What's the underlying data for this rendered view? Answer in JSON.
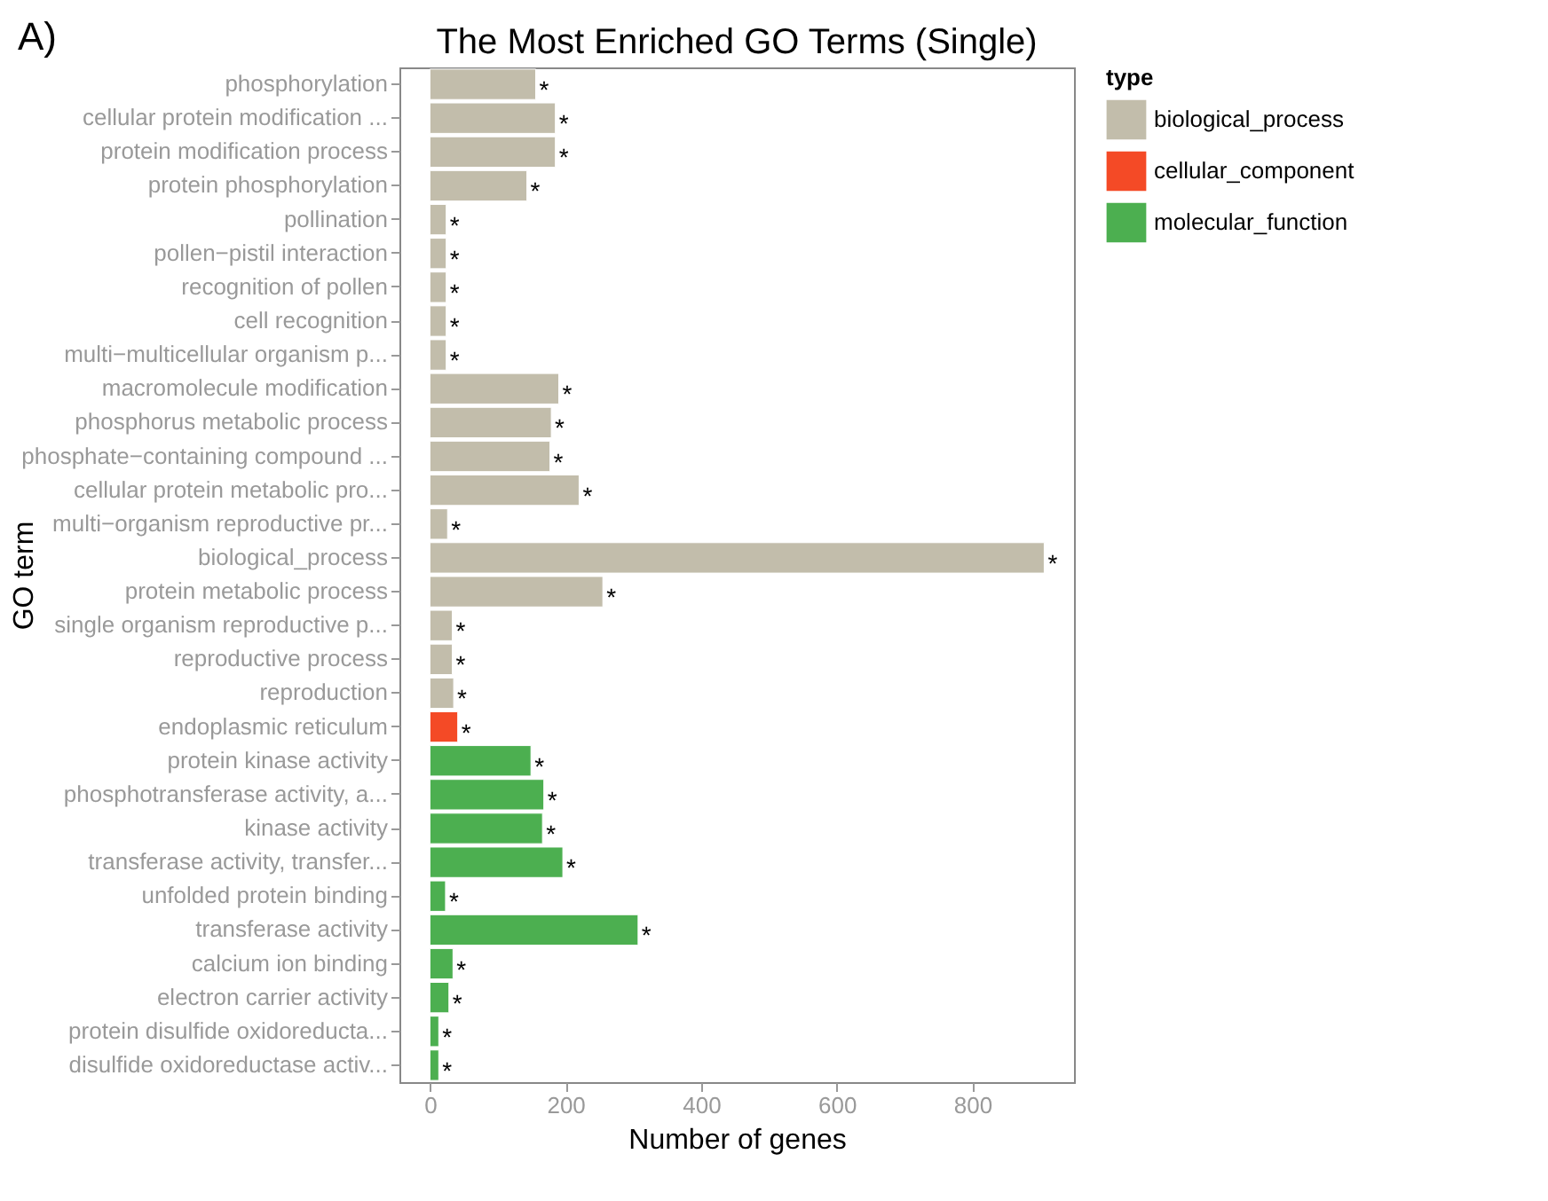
{
  "chart_data": {
    "type": "bar",
    "orientation": "horizontal",
    "title": "The Most Enriched GO Terms (Single)",
    "xlabel": "Number of genes",
    "ylabel": "GO term",
    "legend_title": "type",
    "legend": "right",
    "grid": false,
    "categories": [
      "phosphorylation",
      "cellular protein modification ...",
      "protein modification process",
      "protein phosphorylation",
      "pollination",
      "pollen−pistil interaction",
      "recognition of pollen",
      "cell recognition",
      "multi−multicellular organism p...",
      "macromolecule modification",
      "phosphorus metabolic process",
      "phosphate−containing compound ...",
      "cellular protein metabolic pro...",
      "multi−organism reproductive pr...",
      "biological_process",
      "protein metabolic process",
      "single organism reproductive p...",
      "reproductive process",
      "reproduction",
      "endoplasmic reticulum",
      "protein kinase activity",
      "phosphotransferase activity, a...",
      "kinase activity",
      "transferase activity, transfer...",
      "unfolded protein binding",
      "transferase activity",
      "calcium ion binding",
      "electron carrier activity",
      "protein disulfide oxidoreducta...",
      "disulfide oxidoreductase activ..."
    ],
    "series": [
      {
        "name": "biological_process",
        "color": "#c2bdab",
        "values": [
          156,
          185,
          185,
          143,
          24,
          24,
          24,
          24,
          24,
          190,
          179,
          177,
          220,
          26,
          906,
          255,
          33,
          33,
          35,
          null,
          null,
          null,
          null,
          null,
          null,
          null,
          null,
          null,
          null,
          null
        ]
      },
      {
        "name": "cellular_component",
        "color": "#f44a26",
        "values": [
          null,
          null,
          null,
          null,
          null,
          null,
          null,
          null,
          null,
          null,
          null,
          null,
          null,
          null,
          null,
          null,
          null,
          null,
          null,
          41,
          null,
          null,
          null,
          null,
          null,
          null,
          null,
          null,
          null,
          null
        ]
      },
      {
        "name": "molecular_function",
        "color": "#4caf50",
        "values": [
          null,
          null,
          null,
          null,
          null,
          null,
          null,
          null,
          null,
          null,
          null,
          null,
          null,
          null,
          null,
          null,
          null,
          null,
          null,
          null,
          149,
          168,
          166,
          196,
          23,
          307,
          34,
          28,
          13,
          13
        ]
      }
    ],
    "xlim": [
      -45,
      950
    ],
    "xticks": [
      0,
      200,
      400,
      600,
      800
    ],
    "annotations": [
      "A)",
      {
        "text": "*",
        "x": 156,
        "y": "phosphorylation"
      },
      {
        "text": "*",
        "x": 185,
        "y": "cellular protein modification ..."
      },
      {
        "text": "*",
        "x": 185,
        "y": "protein modification process"
      },
      {
        "text": "*",
        "x": 143,
        "y": "protein phosphorylation"
      },
      {
        "text": "*",
        "x": 24,
        "y": "pollination"
      },
      {
        "text": "*",
        "x": 24,
        "y": "pollen−pistil interaction"
      },
      {
        "text": "*",
        "x": 24,
        "y": "recognition of pollen"
      },
      {
        "text": "*",
        "x": 24,
        "y": "cell recognition"
      },
      {
        "text": "*",
        "x": 24,
        "y": "multi−multicellular organism p..."
      },
      {
        "text": "*",
        "x": 190,
        "y": "macromolecule modification"
      },
      {
        "text": "*",
        "x": 179,
        "y": "phosphorus metabolic process"
      },
      {
        "text": "*",
        "x": 177,
        "y": "phosphate−containing compound ..."
      },
      {
        "text": "*",
        "x": 220,
        "y": "cellular protein metabolic pro..."
      },
      {
        "text": "*",
        "x": 26,
        "y": "multi−organism reproductive pr..."
      },
      {
        "text": "*",
        "x": 906,
        "y": "biological_process"
      },
      {
        "text": "*",
        "x": 255,
        "y": "protein metabolic process"
      },
      {
        "text": "*",
        "x": 33,
        "y": "single organism reproductive p..."
      },
      {
        "text": "*",
        "x": 33,
        "y": "reproductive process"
      },
      {
        "text": "*",
        "x": 35,
        "y": "reproduction"
      },
      {
        "text": "*",
        "x": 41,
        "y": "endoplasmic reticulum"
      },
      {
        "text": "*",
        "x": 149,
        "y": "protein kinase activity"
      },
      {
        "text": "*",
        "x": 168,
        "y": "phosphotransferase activity, a..."
      },
      {
        "text": "*",
        "x": 166,
        "y": "kinase activity"
      },
      {
        "text": "*",
        "x": 196,
        "y": "transferase activity, transfer..."
      },
      {
        "text": "*",
        "x": 23,
        "y": "unfolded protein binding"
      },
      {
        "text": "*",
        "x": 307,
        "y": "transferase activity"
      },
      {
        "text": "*",
        "x": 34,
        "y": "calcium ion binding"
      },
      {
        "text": "*",
        "x": 28,
        "y": "electron carrier activity"
      },
      {
        "text": "*",
        "x": 13,
        "y": "protein disulfide oxidoreducta..."
      },
      {
        "text": "*",
        "x": 13,
        "y": "disulfide oxidoreductase activ..."
      }
    ]
  }
}
